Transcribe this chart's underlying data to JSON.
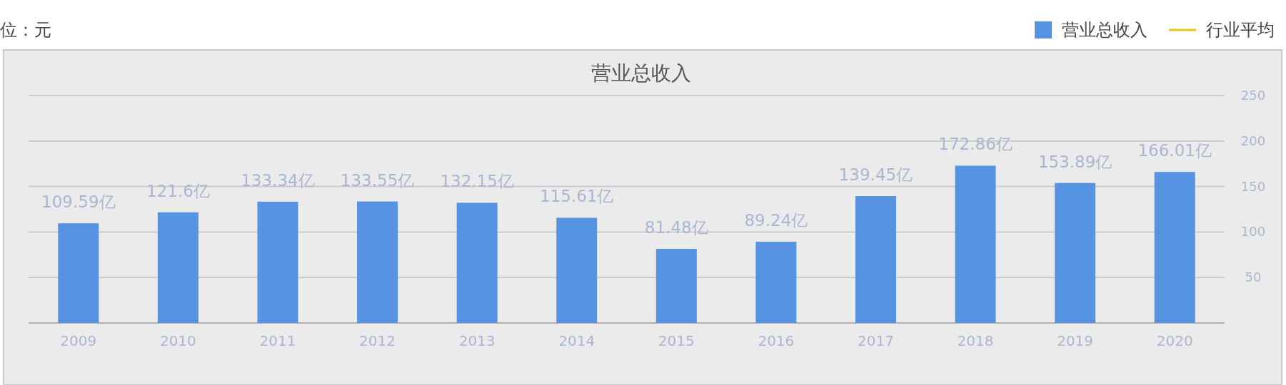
{
  "chart_data": {
    "type": "bar",
    "title": "营业总收入",
    "annotations": [
      "位：元"
    ],
    "categories": [
      "2009",
      "2010",
      "2011",
      "2012",
      "2013",
      "2014",
      "2015",
      "2016",
      "2017",
      "2018",
      "2019",
      "2020"
    ],
    "series": [
      {
        "name": "营业总收入",
        "color": "#5793e3",
        "values": [
          109.59,
          121.6,
          133.34,
          133.55,
          132.15,
          115.61,
          81.48,
          89.24,
          139.45,
          172.86,
          153.89,
          166.01
        ],
        "value_labels": [
          "109.59亿",
          "121.6亿",
          "133.34亿",
          "133.55亿",
          "132.15亿",
          "115.61亿",
          "81.48亿",
          "89.24亿",
          "139.45亿",
          "172.86亿",
          "153.89亿",
          "166.01亿"
        ]
      },
      {
        "name": "行业平均",
        "type": "line",
        "color": "#e6c619",
        "values": [
          null,
          null,
          null,
          null,
          null,
          null,
          null,
          null,
          null,
          null,
          null,
          null
        ]
      }
    ],
    "ylim": [
      0,
      250
    ],
    "yticks": [
      50,
      100,
      150,
      200,
      250
    ],
    "grid": "y",
    "legend": "top right"
  }
}
